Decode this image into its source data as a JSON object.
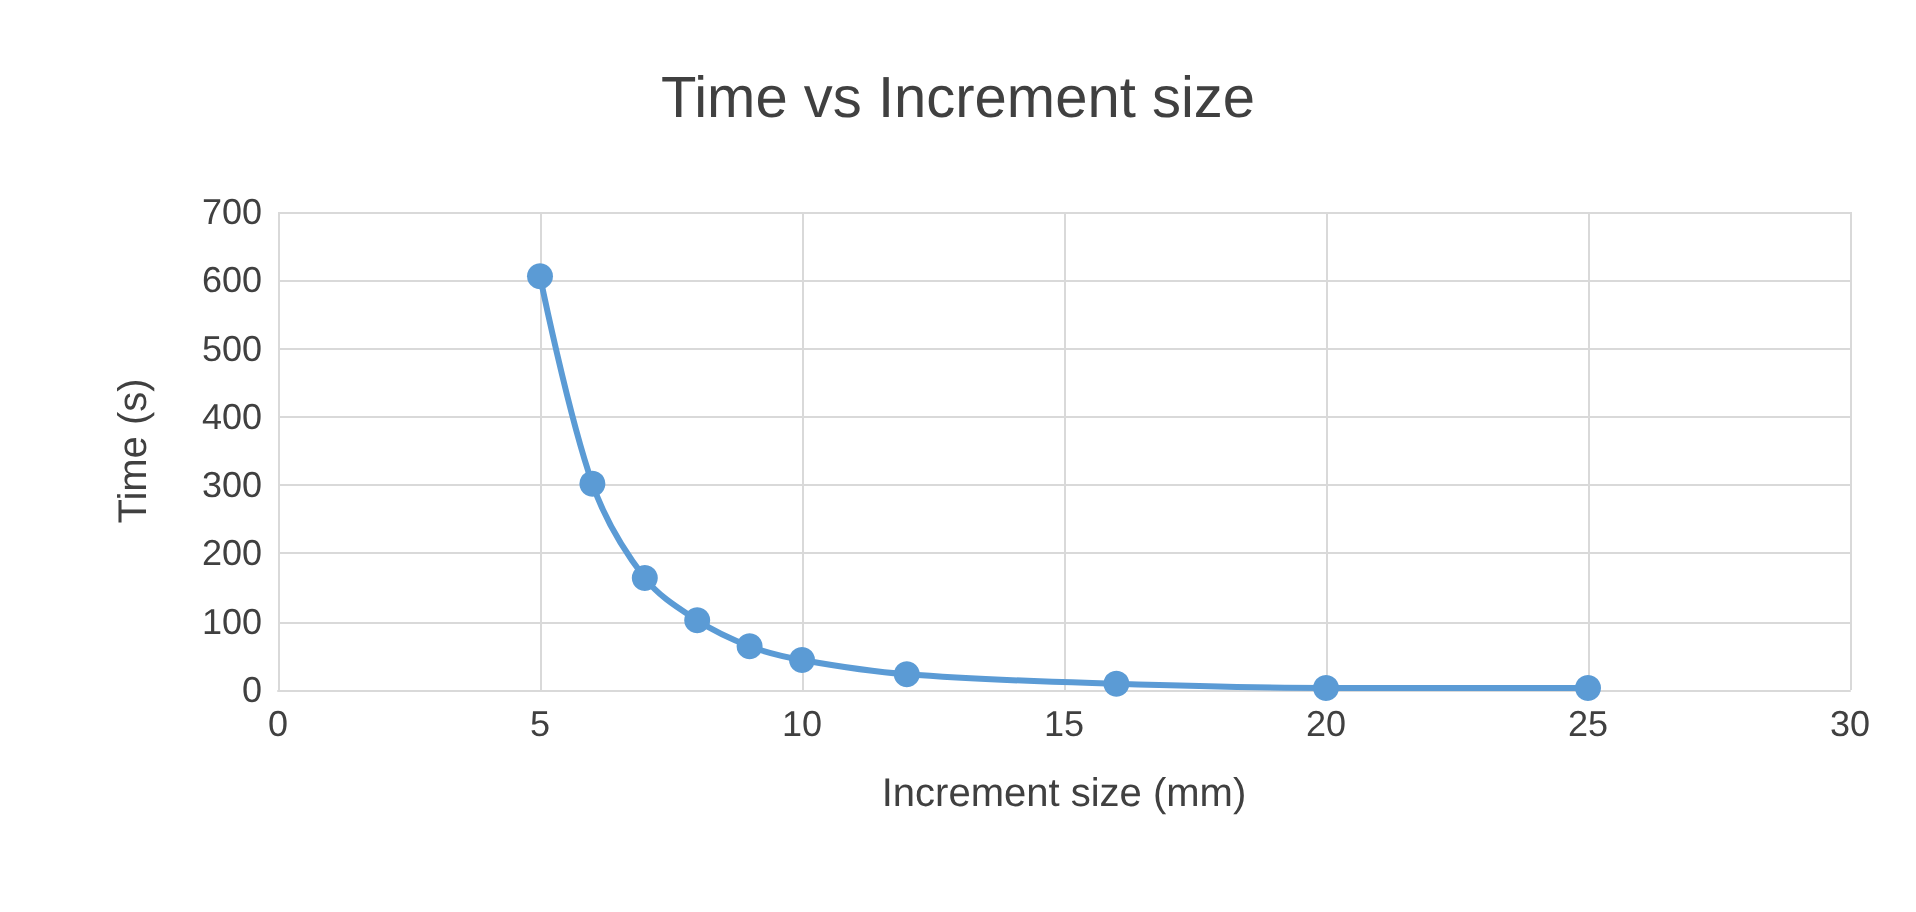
{
  "chart_data": {
    "type": "line",
    "title": "Time vs Increment size",
    "xlabel": "Increment size (mm)",
    "ylabel": "Time (s)",
    "x": [
      5,
      6,
      7,
      8,
      9,
      10,
      12,
      16,
      20,
      25
    ],
    "series": [
      {
        "color": "#5b9bd5",
        "values": [
          606,
          302,
          164,
          102,
          64,
          44,
          23,
          9,
          3,
          3
        ]
      }
    ],
    "xlim": [
      0,
      30
    ],
    "xticks": [
      0,
      5,
      10,
      15,
      20,
      25,
      30
    ],
    "ylim": [
      0,
      700
    ],
    "yticks": [
      0,
      100,
      200,
      300,
      400,
      500,
      600,
      700
    ],
    "grid": true,
    "marker": "circle",
    "line_style": "solid"
  }
}
